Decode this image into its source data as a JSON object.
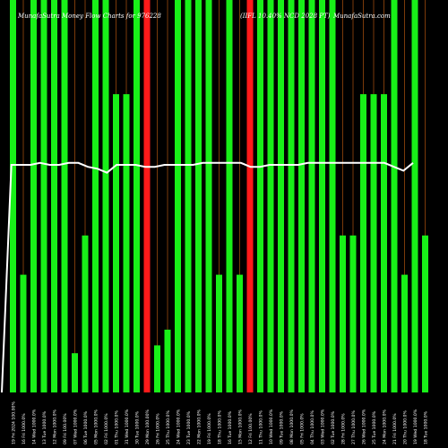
{
  "page": {
    "title_left": "MunafaSutra Money Flow Charts for 976228",
    "title_mid": "(IIFL 10.40% NCD 2028 PT)",
    "title_right": "MunafaSutra.com"
  },
  "chart_data": {
    "type": "bar",
    "title": "MunafaSutra Money Flow Charts for 976228 (IIFL 10.40% NCD 2028 PT) MunafaSutra.com",
    "ylim": [
      0,
      100
    ],
    "colors": {
      "up": "#18f018",
      "down": "#ff1a1a",
      "line": "#ffffff",
      "grid": "#7a3a0a",
      "background": "#000000"
    },
    "bars": [
      {
        "date": "2024-08-19",
        "tick": "19 Fri 2024 100.00%",
        "value": 100,
        "color": "green"
      },
      {
        "date": "2024-08-16",
        "tick": "16 Fri 1000.0%",
        "value": 30,
        "color": "green"
      },
      {
        "date": "2024-08-14",
        "tick": "14 Wed 1000.0%",
        "value": 100,
        "color": "green"
      },
      {
        "date": "2024-08-13",
        "tick": "13 Tue 1000.0%",
        "value": 100,
        "color": "green"
      },
      {
        "date": "2024-08-12",
        "tick": "12 Mon 1000.0%",
        "value": 100,
        "color": "green"
      },
      {
        "date": "2024-08-09",
        "tick": "09 Fri 100.00%",
        "value": 100,
        "color": "green"
      },
      {
        "date": "2024-08-07",
        "tick": "07 Wed 1000.0%",
        "value": 10,
        "color": "green"
      },
      {
        "date": "2024-08-06",
        "tick": "06 Tue 1000.0%",
        "value": 40,
        "color": "green"
      },
      {
        "date": "2024-08-05",
        "tick": "05 Mon 1000.0%",
        "value": 100,
        "color": "green"
      },
      {
        "date": "2024-08-02",
        "tick": "02 Fri 1000.0%",
        "value": 100,
        "color": "green"
      },
      {
        "date": "2024-08-01",
        "tick": "01 Thu 1000.0%",
        "value": 76,
        "color": "green"
      },
      {
        "date": "2024-07-31",
        "tick": "31 Wed 1000.0%",
        "value": 76,
        "color": "green"
      },
      {
        "date": "2024-07-30",
        "tick": "30 Tue 1000.0%",
        "value": 100,
        "color": "green"
      },
      {
        "date": "2024-07-29",
        "tick": "29 Mon 100.00%",
        "value": 100,
        "color": "red"
      },
      {
        "date": "2024-07-26",
        "tick": "26 Fri 1000.0%",
        "value": 12,
        "color": "green"
      },
      {
        "date": "2024-07-25",
        "tick": "25 Thu 1000.0%",
        "value": 16,
        "color": "green"
      },
      {
        "date": "2024-07-24",
        "tick": "24 Wed 1000.0%",
        "value": 100,
        "color": "green"
      },
      {
        "date": "2024-07-23",
        "tick": "23 Tue 1000.0%",
        "value": 100,
        "color": "green"
      },
      {
        "date": "2024-07-22",
        "tick": "22 Mon 1000.0%",
        "value": 100,
        "color": "green"
      },
      {
        "date": "2024-07-19",
        "tick": "19 Fri 1000.0%",
        "value": 100,
        "color": "green"
      },
      {
        "date": "2024-07-18",
        "tick": "18 Thu 1000.0%",
        "value": 30,
        "color": "green"
      },
      {
        "date": "2024-07-16",
        "tick": "16 Tue 1000.0%",
        "value": 100,
        "color": "green"
      },
      {
        "date": "2024-07-15",
        "tick": "15 Mon 1000.0%",
        "value": 30,
        "color": "green"
      },
      {
        "date": "2024-07-12",
        "tick": "12 Fri 100.00%",
        "value": 100,
        "color": "red"
      },
      {
        "date": "2024-07-11",
        "tick": "11 Thu 1000.0%",
        "value": 100,
        "color": "green"
      },
      {
        "date": "2024-07-10",
        "tick": "10 Wed 1000.0%",
        "value": 100,
        "color": "green"
      },
      {
        "date": "2024-07-09",
        "tick": "09 Tue 1000.0%",
        "value": 100,
        "color": "green"
      },
      {
        "date": "2024-07-08",
        "tick": "08 Mon 1000.0%",
        "value": 100,
        "color": "green"
      },
      {
        "date": "2024-07-05",
        "tick": "05 Fri 1000.0%",
        "value": 100,
        "color": "green"
      },
      {
        "date": "2024-07-04",
        "tick": "04 Thu 1000.0%",
        "value": 100,
        "color": "green"
      },
      {
        "date": "2024-07-03",
        "tick": "03 Wed 1000.0%",
        "value": 100,
        "color": "green"
      },
      {
        "date": "2024-07-02",
        "tick": "02 Tue 1000.0%",
        "value": 100,
        "color": "green"
      },
      {
        "date": "2024-06-28",
        "tick": "28 Fri 1000.0%",
        "value": 40,
        "color": "green"
      },
      {
        "date": "2024-06-27",
        "tick": "27 Thu 1000.0%",
        "value": 40,
        "color": "green"
      },
      {
        "date": "2024-06-26",
        "tick": "26 Wed 1000.0%",
        "value": 76,
        "color": "green"
      },
      {
        "date": "2024-06-25",
        "tick": "25 Tue 1000.0%",
        "value": 76,
        "color": "green"
      },
      {
        "date": "2024-06-24",
        "tick": "24 Mon 1000.0%",
        "value": 76,
        "color": "green"
      },
      {
        "date": "2024-06-21",
        "tick": "21 Fri 1000.0%",
        "value": 100,
        "color": "green"
      },
      {
        "date": "2024-06-20",
        "tick": "20 Thu 1000.0%",
        "value": 30,
        "color": "green"
      },
      {
        "date": "2024-06-19",
        "tick": "19 Wed 1000.0%",
        "value": 100,
        "color": "green"
      },
      {
        "date": "2024-06-18",
        "tick": "18 Tue 1000.0%",
        "value": 40,
        "color": "green"
      }
    ],
    "line": {
      "name": "",
      "values": [
        0,
        58,
        58,
        58,
        58.5,
        58,
        58,
        58.5,
        58.5,
        57.5,
        57,
        56,
        58,
        58,
        58,
        57.5,
        57.5,
        58,
        58,
        58,
        58,
        58.5,
        58.5,
        58.5,
        58.5,
        58.5,
        57.5,
        57.5,
        58,
        58,
        58,
        58,
        58.5,
        58.5,
        58.5,
        58.5,
        58.5,
        58.5,
        58.5,
        58.5,
        58.5,
        57.5,
        56.5,
        58.5
      ]
    }
  }
}
